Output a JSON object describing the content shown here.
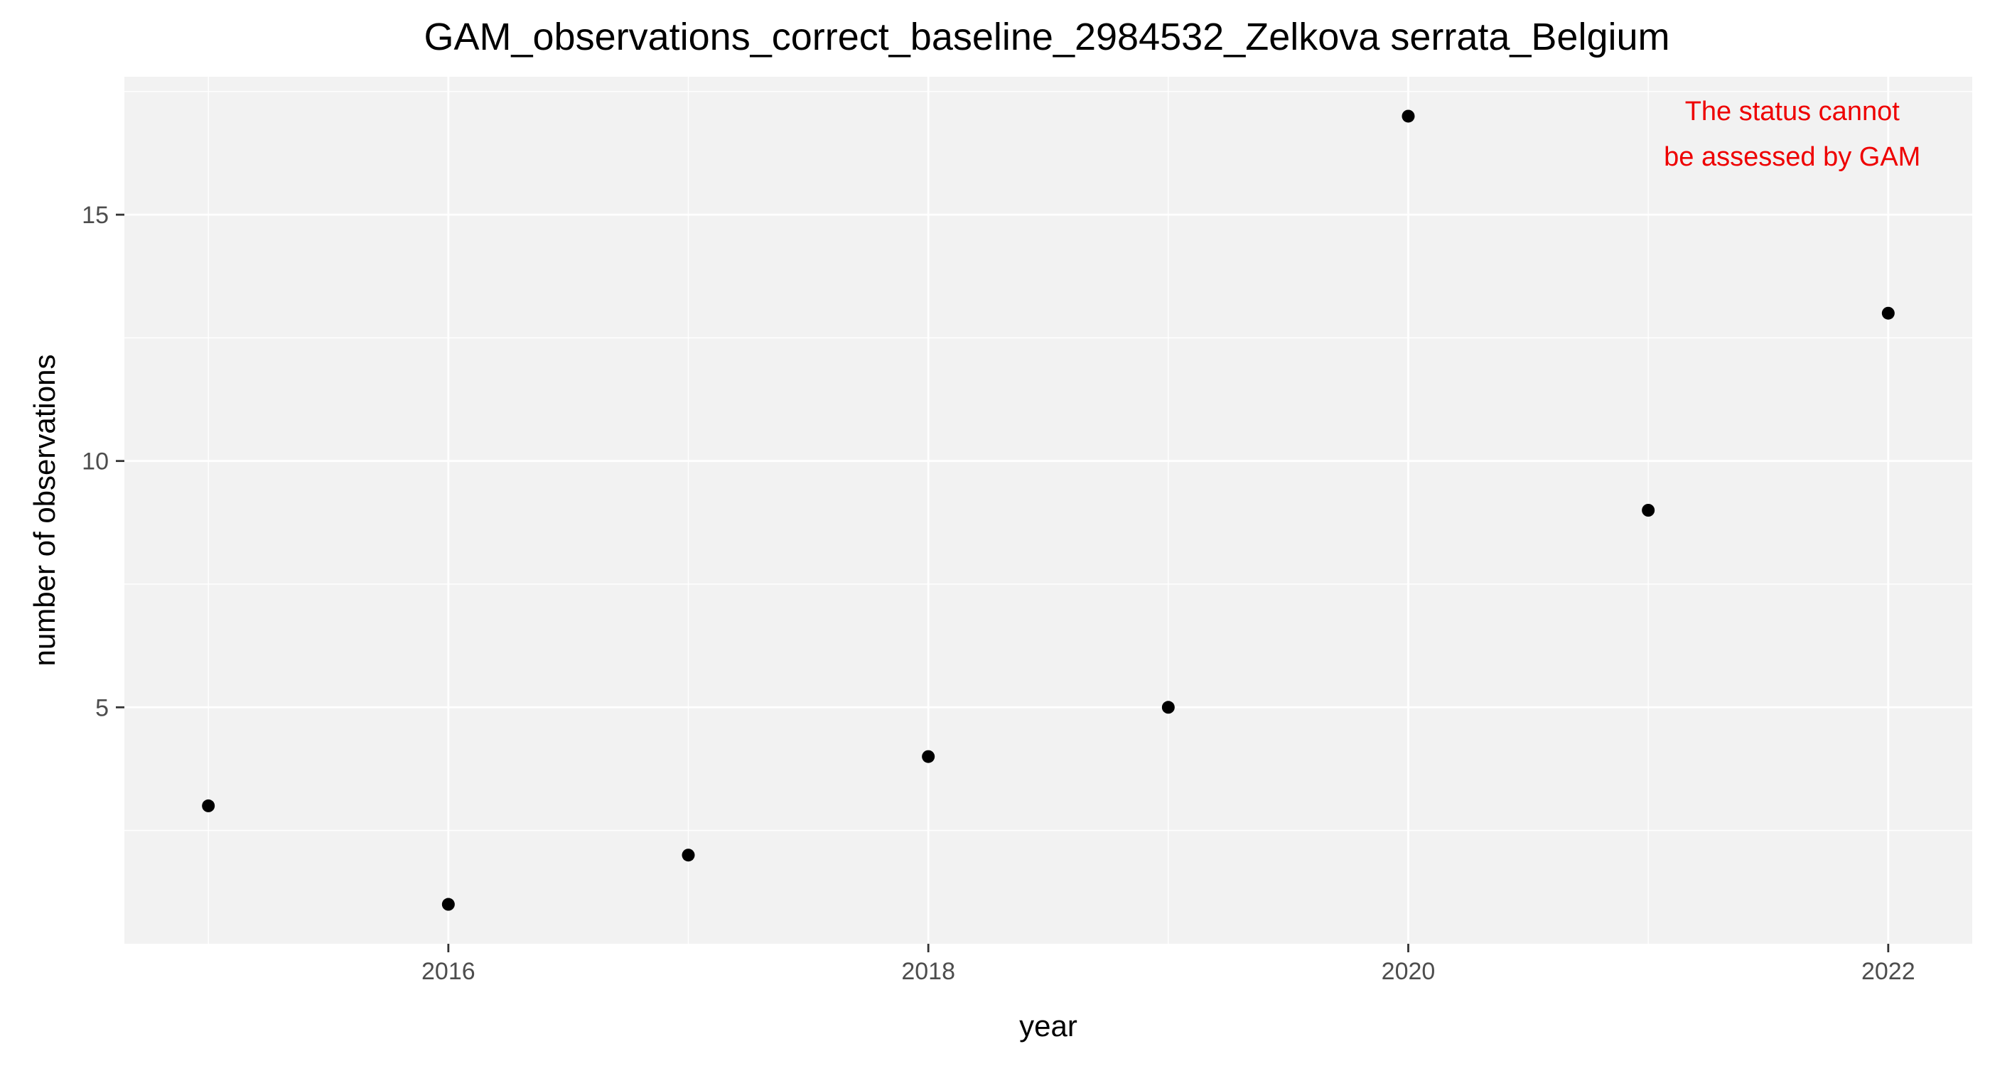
{
  "chart_data": {
    "type": "scatter",
    "title": "GAM_observations_correct_baseline_2984532_Zelkova serrata_Belgium",
    "xlabel": "year",
    "ylabel": "number of observations",
    "x": [
      2015,
      2016,
      2017,
      2018,
      2019,
      2020,
      2021,
      2022
    ],
    "y": [
      3,
      1,
      2,
      4,
      5,
      17,
      9,
      13
    ],
    "xlim": [
      2014.65,
      2022.35
    ],
    "ylim": [
      0.2,
      17.8
    ],
    "x_ticks": [
      2016,
      2018,
      2020,
      2022
    ],
    "y_ticks": [
      5,
      10,
      15
    ],
    "x_minor_ticks": [
      2015,
      2017,
      2019,
      2021
    ],
    "y_minor_ticks": [
      2.5,
      7.5,
      12.5,
      17.5
    ],
    "grid": true,
    "annotation": {
      "lines": [
        "The status cannot",
        "be assessed by GAM"
      ],
      "color": "#ee0000",
      "x": 2021.6,
      "y": 16.2
    },
    "colors": {
      "panel_background": "#f2f2f2",
      "grid": "#ffffff",
      "point": "#000000"
    }
  }
}
